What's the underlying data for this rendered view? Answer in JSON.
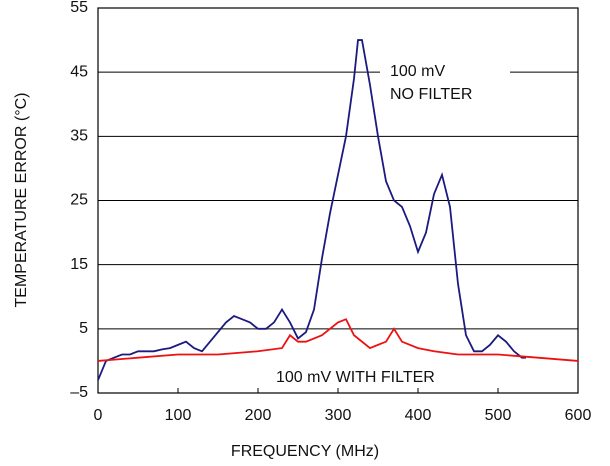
{
  "chart_data": {
    "type": "line",
    "xlabel": "FREQUENCY (MHz)",
    "ylabel": "TEMPERATURE ERROR (°C)",
    "annotations": [
      "100 mV",
      "NO FILTER",
      "100 mV WITH FILTER"
    ],
    "xlim": [
      0,
      600
    ],
    "xticks": [
      0,
      100,
      200,
      300,
      400,
      500,
      600
    ],
    "ylim": [
      -5,
      55
    ],
    "yticks": [
      {
        "value": -5,
        "label": "–5"
      },
      5,
      15,
      25,
      35,
      45,
      55
    ],
    "grid": true,
    "series": [
      {
        "name": "100 mV NO FILTER",
        "color": "#1a1a80",
        "x": [
          0,
          10,
          20,
          30,
          40,
          50,
          60,
          70,
          80,
          90,
          100,
          110,
          120,
          130,
          140,
          150,
          160,
          170,
          180,
          190,
          200,
          210,
          220,
          230,
          240,
          250,
          260,
          270,
          280,
          290,
          300,
          310,
          320,
          325,
          330,
          340,
          350,
          360,
          370,
          380,
          390,
          400,
          410,
          420,
          430,
          440,
          450,
          460,
          470,
          480,
          490,
          500,
          510,
          520,
          530,
          535
        ],
        "values": [
          -3,
          0,
          0.5,
          1,
          1,
          1.5,
          1.5,
          1.5,
          1.8,
          2,
          2.5,
          3,
          2,
          1.5,
          3,
          4.5,
          6,
          7,
          6.5,
          6,
          5,
          5,
          6,
          8,
          6,
          3.5,
          4.5,
          8,
          16,
          23,
          29,
          35,
          44,
          50,
          50,
          43,
          35,
          28,
          25,
          24,
          21,
          17,
          20,
          26,
          29,
          24,
          12,
          4,
          1.5,
          1.5,
          2.5,
          4,
          3,
          1.5,
          0.5,
          0.5
        ]
      },
      {
        "name": "100 mV WITH FILTER",
        "color": "#ee1111",
        "x": [
          0,
          50,
          100,
          150,
          200,
          230,
          240,
          250,
          260,
          280,
          300,
          310,
          320,
          340,
          360,
          370,
          380,
          400,
          420,
          450,
          500,
          550,
          600
        ],
        "values": [
          0,
          0.5,
          1,
          1,
          1.5,
          2,
          4,
          3,
          3,
          4,
          6,
          6.5,
          4,
          2,
          3,
          5,
          3,
          2,
          1.5,
          1,
          1,
          0.5,
          0
        ]
      }
    ]
  }
}
